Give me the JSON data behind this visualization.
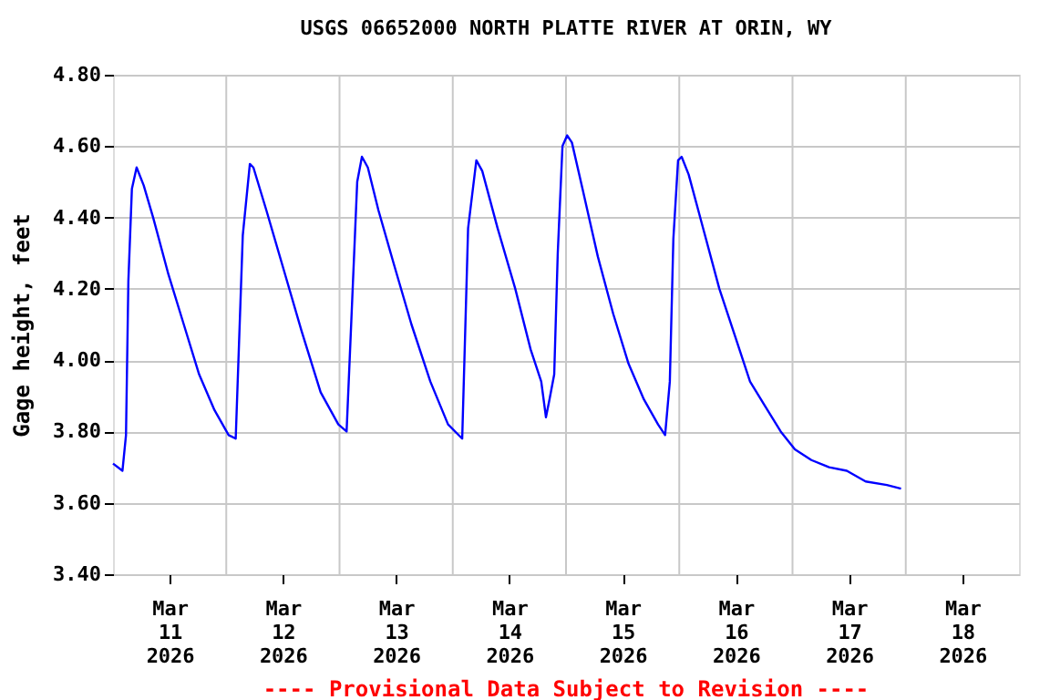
{
  "chart_data": {
    "type": "line",
    "title": "USGS 06652000 NORTH PLATTE RIVER AT ORIN, WY",
    "ylabel": "Gage height, feet",
    "annotations": [
      "---- Provisional Data Subject to Revision ----"
    ],
    "x": [
      "2026-03-11T00:00",
      "2026-03-11T02:00",
      "2026-03-11T02:45",
      "2026-03-11T03:15",
      "2026-03-11T04:00",
      "2026-03-11T05:00",
      "2026-03-11T06:30",
      "2026-03-11T08:30",
      "2026-03-11T11:45",
      "2026-03-11T15:00",
      "2026-03-11T18:15",
      "2026-03-11T21:30",
      "2026-03-12T00:30",
      "2026-03-12T02:00",
      "2026-03-12T03:30",
      "2026-03-12T05:00",
      "2026-03-12T05:45",
      "2026-03-12T08:30",
      "2026-03-12T12:15",
      "2026-03-12T16:00",
      "2026-03-12T20:00",
      "2026-03-12T23:45",
      "2026-03-13T01:30",
      "2026-03-13T02:30",
      "2026-03-13T03:45",
      "2026-03-13T04:45",
      "2026-03-13T06:00",
      "2026-03-13T08:15",
      "2026-03-13T11:30",
      "2026-03-13T15:15",
      "2026-03-13T19:15",
      "2026-03-13T23:00",
      "2026-03-14T02:00",
      "2026-03-14T03:15",
      "2026-03-14T05:00",
      "2026-03-14T06:15",
      "2026-03-14T09:30",
      "2026-03-14T13:15",
      "2026-03-14T16:30",
      "2026-03-14T18:45",
      "2026-03-14T19:45",
      "2026-03-14T20:30",
      "2026-03-14T21:30",
      "2026-03-14T22:15",
      "2026-03-14T23:15",
      "2026-03-15T00:15",
      "2026-03-15T01:15",
      "2026-03-15T03:30",
      "2026-03-15T06:45",
      "2026-03-15T10:00",
      "2026-03-15T13:15",
      "2026-03-15T16:30",
      "2026-03-15T19:30",
      "2026-03-15T21:00",
      "2026-03-15T22:00",
      "2026-03-15T22:45",
      "2026-03-15T23:45",
      "2026-03-16T00:30",
      "2026-03-16T02:00",
      "2026-03-16T05:15",
      "2026-03-16T08:30",
      "2026-03-16T11:45",
      "2026-03-16T15:00",
      "2026-03-16T18:15",
      "2026-03-16T21:30",
      "2026-03-17T00:30",
      "2026-03-17T04:00",
      "2026-03-17T07:45",
      "2026-03-17T11:30",
      "2026-03-17T15:30",
      "2026-03-17T20:00",
      "2026-03-17T23:00"
    ],
    "series": [
      {
        "color": "#0000ff",
        "values": [
          3.71,
          3.69,
          3.79,
          4.22,
          4.48,
          4.54,
          4.49,
          4.4,
          4.24,
          4.1,
          3.96,
          3.86,
          3.79,
          3.78,
          4.35,
          4.55,
          4.54,
          4.42,
          4.25,
          4.08,
          3.91,
          3.82,
          3.8,
          4.11,
          4.5,
          4.57,
          4.54,
          4.42,
          4.27,
          4.1,
          3.94,
          3.82,
          3.78,
          4.37,
          4.56,
          4.53,
          4.37,
          4.2,
          4.03,
          3.94,
          3.84,
          3.89,
          3.96,
          4.3,
          4.6,
          4.63,
          4.61,
          4.48,
          4.29,
          4.13,
          3.99,
          3.89,
          3.82,
          3.79,
          3.94,
          4.34,
          4.56,
          4.57,
          4.52,
          4.36,
          4.2,
          4.07,
          3.94,
          3.87,
          3.8,
          3.75,
          3.72,
          3.7,
          3.69,
          3.66,
          3.65,
          3.64
        ]
      }
    ],
    "xlim": [
      "2026-03-11T00:00",
      "2026-03-19T00:00"
    ],
    "xticks": [
      {
        "value": "2026-03-11T12:00",
        "label": "Mar 11 2026"
      },
      {
        "value": "2026-03-12T00:00",
        "label": null
      },
      {
        "value": "2026-03-12T12:00",
        "label": "Mar 12 2026"
      },
      {
        "value": "2026-03-13T00:00",
        "label": null
      },
      {
        "value": "2026-03-13T12:00",
        "label": "Mar 13 2026"
      },
      {
        "value": "2026-03-14T00:00",
        "label": null
      },
      {
        "value": "2026-03-14T12:00",
        "label": "Mar 14 2026"
      },
      {
        "value": "2026-03-15T00:00",
        "label": null
      },
      {
        "value": "2026-03-15T12:00",
        "label": "Mar 15 2026"
      },
      {
        "value": "2026-03-16T00:00",
        "label": null
      },
      {
        "value": "2026-03-16T12:00",
        "label": "Mar 16 2026"
      },
      {
        "value": "2026-03-17T00:00",
        "label": null
      },
      {
        "value": "2026-03-17T12:00",
        "label": "Mar 17 2026"
      },
      {
        "value": "2026-03-18T00:00",
        "label": null
      },
      {
        "value": "2026-03-18T12:00",
        "label": "Mar 18 2026"
      }
    ],
    "ylim": [
      3.4,
      4.8
    ],
    "yticks": [
      {
        "value": 3.4,
        "label": "3.40"
      },
      {
        "value": 3.6,
        "label": "3.60"
      },
      {
        "value": 3.8,
        "label": "3.80"
      },
      {
        "value": 4.0,
        "label": "4.00"
      },
      {
        "value": 4.2,
        "label": "4.20"
      },
      {
        "value": 4.4,
        "label": "4.40"
      },
      {
        "value": 4.6,
        "label": "4.60"
      },
      {
        "value": 4.8,
        "label": "4.80"
      }
    ],
    "grid": true,
    "marker": "none",
    "line_style": "solid"
  }
}
